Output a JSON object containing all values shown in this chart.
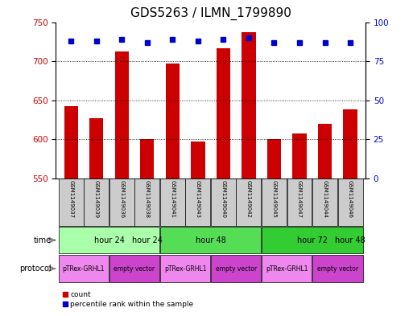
{
  "title": "GDS5263 / ILMN_1799890",
  "samples": [
    "GSM1149037",
    "GSM1149039",
    "GSM1149036",
    "GSM1149038",
    "GSM1149041",
    "GSM1149043",
    "GSM1149040",
    "GSM1149042",
    "GSM1149045",
    "GSM1149047",
    "GSM1149044",
    "GSM1149046"
  ],
  "counts": [
    643,
    627,
    712,
    600,
    697,
    597,
    717,
    737,
    600,
    608,
    620,
    638
  ],
  "percentile_ranks": [
    88,
    88,
    89,
    87,
    89,
    88,
    89,
    90,
    87,
    87,
    87,
    87
  ],
  "ylim_left": [
    550,
    750
  ],
  "ylim_right": [
    0,
    100
  ],
  "yticks_left": [
    550,
    600,
    650,
    700,
    750
  ],
  "yticks_right": [
    0,
    25,
    50,
    75,
    100
  ],
  "time_groups": [
    {
      "label": "hour 24",
      "start": 0,
      "end": 4,
      "color": "#aaffaa"
    },
    {
      "label": "hour 48",
      "start": 4,
      "end": 8,
      "color": "#55dd55"
    },
    {
      "label": "hour 72",
      "start": 8,
      "end": 12,
      "color": "#33cc33"
    }
  ],
  "protocol_groups": [
    {
      "label": "pTRex-GRHL1",
      "start": 0,
      "end": 2,
      "color": "#ee88ee"
    },
    {
      "label": "empty vector",
      "start": 2,
      "end": 4,
      "color": "#cc44cc"
    },
    {
      "label": "pTRex-GRHL1",
      "start": 4,
      "end": 6,
      "color": "#ee88ee"
    },
    {
      "label": "empty vector",
      "start": 6,
      "end": 8,
      "color": "#cc44cc"
    },
    {
      "label": "pTRex-GRHL1",
      "start": 8,
      "end": 10,
      "color": "#ee88ee"
    },
    {
      "label": "empty vector",
      "start": 10,
      "end": 12,
      "color": "#cc44cc"
    }
  ],
  "bar_color": "#cc0000",
  "dot_color": "#0000cc",
  "bar_width": 0.55,
  "sample_bg_color": "#cccccc",
  "background_color": "#ffffff",
  "title_fontsize": 11,
  "tick_fontsize": 7.5,
  "label_fontsize": 7
}
